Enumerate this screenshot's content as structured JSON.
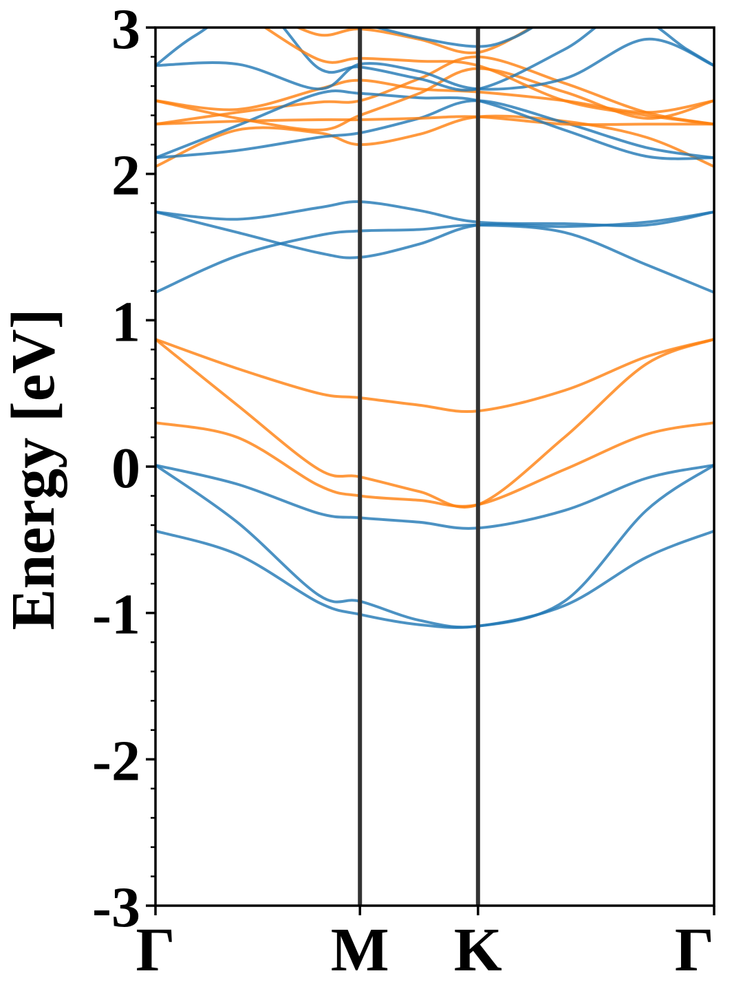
{
  "chart_data": {
    "type": "line",
    "title": "",
    "xlabel": "",
    "ylabel": "Energy [eV]",
    "ylim": [
      -3,
      3
    ],
    "yticks": [
      3,
      2,
      1,
      0,
      -1,
      -2,
      -3
    ],
    "ytick_labels": [
      "3",
      "2",
      "1",
      "0",
      "-1",
      "-2",
      "-3"
    ],
    "x_path_length": [
      0,
      1,
      1.5774,
      2.7321
    ],
    "kpoint_labels": [
      "Γ",
      "M",
      "K",
      "Γ"
    ],
    "kpoint_positions": [
      0,
      1,
      1.5774,
      2.7321
    ],
    "grid": false,
    "legend": "none",
    "colors": {
      "spin_a": "#1f77b4",
      "spin_b": "#ff7f0e",
      "kline": "#333333"
    },
    "series": [
      {
        "color": "spin_a",
        "points": [
          [
            0,
            -0.44
          ],
          [
            0.4,
            -0.6
          ],
          [
            0.8,
            -0.93
          ],
          [
            1,
            -1.01
          ],
          [
            1.29,
            -1.08
          ],
          [
            1.5774,
            -1.09
          ],
          [
            2.0,
            -0.95
          ],
          [
            2.4,
            -0.62
          ],
          [
            2.7321,
            -0.44
          ]
        ]
      },
      {
        "color": "spin_a",
        "points": [
          [
            0,
            0.01
          ],
          [
            0.4,
            -0.38
          ],
          [
            0.8,
            -0.88
          ],
          [
            1,
            -0.92
          ],
          [
            1.29,
            -1.05
          ],
          [
            1.5774,
            -1.09
          ],
          [
            2.0,
            -0.92
          ],
          [
            2.4,
            -0.3
          ],
          [
            2.7321,
            0.01
          ]
        ]
      },
      {
        "color": "spin_a",
        "points": [
          [
            0,
            0.01
          ],
          [
            0.4,
            -0.12
          ],
          [
            0.8,
            -0.32
          ],
          [
            1,
            -0.35
          ],
          [
            1.29,
            -0.38
          ],
          [
            1.5774,
            -0.42
          ],
          [
            2.0,
            -0.3
          ],
          [
            2.4,
            -0.08
          ],
          [
            2.7321,
            0.01
          ]
        ]
      },
      {
        "color": "spin_b",
        "points": [
          [
            0,
            0.3
          ],
          [
            0.4,
            0.2
          ],
          [
            0.8,
            -0.13
          ],
          [
            1,
            -0.2
          ],
          [
            1.29,
            -0.23
          ],
          [
            1.5774,
            -0.26
          ],
          [
            2.0,
            -0.02
          ],
          [
            2.4,
            0.22
          ],
          [
            2.7321,
            0.3
          ]
        ]
      },
      {
        "color": "spin_b",
        "points": [
          [
            0,
            0.87
          ],
          [
            0.4,
            0.42
          ],
          [
            0.8,
            -0.02
          ],
          [
            1,
            -0.07
          ],
          [
            1.29,
            -0.17
          ],
          [
            1.5774,
            -0.26
          ],
          [
            2.0,
            0.2
          ],
          [
            2.4,
            0.7
          ],
          [
            2.7321,
            0.87
          ]
        ]
      },
      {
        "color": "spin_b",
        "points": [
          [
            0,
            0.87
          ],
          [
            0.4,
            0.67
          ],
          [
            0.8,
            0.5
          ],
          [
            1,
            0.47
          ],
          [
            1.29,
            0.42
          ],
          [
            1.5774,
            0.38
          ],
          [
            2.0,
            0.52
          ],
          [
            2.4,
            0.75
          ],
          [
            2.7321,
            0.87
          ]
        ]
      },
      {
        "color": "spin_a",
        "points": [
          [
            0,
            1.19
          ],
          [
            0.4,
            1.44
          ],
          [
            0.8,
            1.58
          ],
          [
            1,
            1.61
          ],
          [
            1.29,
            1.62
          ],
          [
            1.5774,
            1.65
          ],
          [
            2.0,
            1.6
          ],
          [
            2.4,
            1.38
          ],
          [
            2.7321,
            1.19
          ]
        ]
      },
      {
        "color": "spin_a",
        "points": [
          [
            0,
            1.74
          ],
          [
            0.4,
            1.6
          ],
          [
            0.8,
            1.46
          ],
          [
            1,
            1.43
          ],
          [
            1.29,
            1.52
          ],
          [
            1.5774,
            1.65
          ],
          [
            2.0,
            1.64
          ],
          [
            2.4,
            1.67
          ],
          [
            2.7321,
            1.74
          ]
        ]
      },
      {
        "color": "spin_a",
        "points": [
          [
            0,
            1.74
          ],
          [
            0.4,
            1.69
          ],
          [
            0.8,
            1.77
          ],
          [
            1,
            1.81
          ],
          [
            1.29,
            1.75
          ],
          [
            1.5774,
            1.67
          ],
          [
            2.0,
            1.66
          ],
          [
            2.4,
            1.65
          ],
          [
            2.7321,
            1.74
          ]
        ]
      },
      {
        "color": "spin_b",
        "points": [
          [
            0,
            2.05
          ],
          [
            0.4,
            2.3
          ],
          [
            0.8,
            2.28
          ],
          [
            1,
            2.2
          ],
          [
            1.29,
            2.27
          ],
          [
            1.5774,
            2.39
          ],
          [
            2.0,
            2.36
          ],
          [
            2.4,
            2.25
          ],
          [
            2.7321,
            2.05
          ]
        ]
      },
      {
        "color": "spin_a",
        "points": [
          [
            0,
            2.11
          ],
          [
            0.4,
            2.16
          ],
          [
            0.8,
            2.25
          ],
          [
            1,
            2.28
          ],
          [
            1.29,
            2.38
          ],
          [
            1.5774,
            2.5
          ],
          [
            2.0,
            2.35
          ],
          [
            2.4,
            2.18
          ],
          [
            2.7321,
            2.11
          ]
        ]
      },
      {
        "color": "spin_b",
        "points": [
          [
            0,
            2.34
          ],
          [
            0.4,
            2.36
          ],
          [
            0.8,
            2.37
          ],
          [
            1,
            2.37
          ],
          [
            1.29,
            2.38
          ],
          [
            1.5774,
            2.39
          ],
          [
            2.0,
            2.34
          ],
          [
            2.4,
            2.34
          ],
          [
            2.7321,
            2.34
          ]
        ]
      },
      {
        "color": "spin_b",
        "points": [
          [
            0,
            2.34
          ],
          [
            0.4,
            2.42
          ],
          [
            0.8,
            2.49
          ],
          [
            1,
            2.5
          ],
          [
            1.29,
            2.65
          ],
          [
            1.5774,
            2.8
          ],
          [
            2.0,
            2.62
          ],
          [
            2.4,
            2.42
          ],
          [
            2.7321,
            2.34
          ]
        ]
      },
      {
        "color": "spin_b",
        "points": [
          [
            0,
            2.5
          ],
          [
            0.4,
            2.44
          ],
          [
            0.8,
            2.58
          ],
          [
            1,
            2.64
          ],
          [
            1.29,
            2.58
          ],
          [
            1.5774,
            2.56
          ],
          [
            2.0,
            2.5
          ],
          [
            2.4,
            2.42
          ],
          [
            2.7321,
            2.5
          ]
        ]
      },
      {
        "color": "spin_a",
        "points": [
          [
            0,
            2.11
          ],
          [
            0.4,
            2.33
          ],
          [
            0.8,
            2.55
          ],
          [
            1,
            2.55
          ],
          [
            1.29,
            2.52
          ],
          [
            1.5774,
            2.5
          ],
          [
            2.0,
            2.3
          ],
          [
            2.4,
            2.12
          ],
          [
            2.7321,
            2.11
          ]
        ]
      },
      {
        "color": "spin_b",
        "points": [
          [
            0,
            2.5
          ],
          [
            0.4,
            2.38
          ],
          [
            0.8,
            2.3
          ],
          [
            1,
            2.4
          ],
          [
            1.29,
            2.55
          ],
          [
            1.5774,
            2.72
          ],
          [
            2.0,
            2.56
          ],
          [
            2.4,
            2.38
          ],
          [
            2.7321,
            2.5
          ]
        ]
      },
      {
        "color": "spin_a",
        "points": [
          [
            0,
            2.74
          ],
          [
            0.4,
            2.75
          ],
          [
            0.8,
            2.58
          ],
          [
            1,
            2.75
          ],
          [
            1.29,
            2.7
          ],
          [
            1.5774,
            2.58
          ],
          [
            2.0,
            2.65
          ],
          [
            2.4,
            2.92
          ],
          [
            2.7321,
            2.74
          ]
        ]
      },
      {
        "color": "spin_a",
        "points": [
          [
            0,
            2.74
          ],
          [
            0.2,
            2.95
          ],
          [
            0.5,
            3.15
          ],
          [
            0.8,
            2.72
          ],
          [
            1,
            2.73
          ],
          [
            1.29,
            2.65
          ],
          [
            1.5774,
            2.58
          ],
          [
            2.0,
            2.85
          ],
          [
            2.3,
            3.1
          ],
          [
            2.6,
            2.85
          ],
          [
            2.7321,
            2.74
          ]
        ]
      },
      {
        "color": "spin_b",
        "points": [
          [
            0.45,
            3.08
          ],
          [
            0.8,
            2.78
          ],
          [
            1,
            2.79
          ],
          [
            1.29,
            2.77
          ],
          [
            1.5774,
            2.74
          ],
          [
            2.0,
            2.5
          ],
          [
            2.4,
            2.4
          ],
          [
            2.7321,
            2.34
          ]
        ]
      },
      {
        "color": "spin_b",
        "points": [
          [
            0.55,
            3.1
          ],
          [
            0.8,
            2.95
          ],
          [
            1,
            2.99
          ],
          [
            1.29,
            2.92
          ],
          [
            1.5774,
            2.83
          ],
          [
            1.9,
            3.05
          ]
        ]
      },
      {
        "color": "spin_a",
        "points": [
          [
            0.95,
            3.05
          ],
          [
            1.29,
            2.93
          ],
          [
            1.5774,
            2.87
          ],
          [
            1.75,
            2.93
          ],
          [
            1.9,
            3.05
          ]
        ]
      }
    ]
  }
}
